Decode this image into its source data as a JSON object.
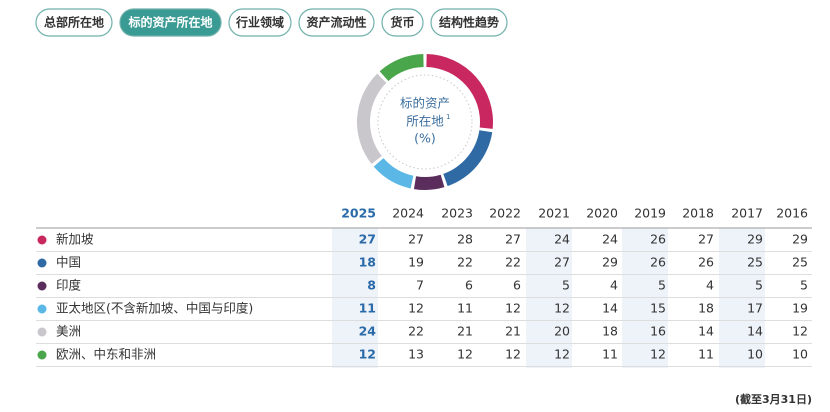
{
  "tabs": [
    "总部所在地",
    "标的资产所在地",
    "行业领域",
    "资产流动性",
    "货币",
    "结构性趋势"
  ],
  "active_tab": 1,
  "donut": {
    "title_lines": [
      "标的资产",
      "所在地",
      "(%)"
    ],
    "footnote_mark": "1"
  },
  "table": {
    "years": [
      2025,
      2024,
      2023,
      2022,
      2021,
      2020,
      2019,
      2018,
      2017,
      2016
    ],
    "rows": [
      {
        "name": "新加坡",
        "color": "#c8285f",
        "values": [
          27,
          27,
          28,
          27,
          24,
          24,
          26,
          27,
          29,
          29
        ]
      },
      {
        "name": "中国",
        "color": "#2f6aa5",
        "values": [
          18,
          19,
          22,
          22,
          27,
          29,
          26,
          26,
          25,
          25
        ]
      },
      {
        "name": "印度",
        "color": "#5a2d5c",
        "values": [
          8,
          7,
          6,
          6,
          5,
          4,
          5,
          4,
          5,
          5
        ]
      },
      {
        "name": "亚太地区(不含新加坡、中国与印度)",
        "color": "#5bb8e6",
        "values": [
          11,
          12,
          11,
          12,
          12,
          14,
          15,
          18,
          17,
          19
        ]
      },
      {
        "name": "美洲",
        "color": "#c9c6cc",
        "values": [
          24,
          22,
          21,
          21,
          20,
          18,
          16,
          14,
          14,
          12
        ]
      },
      {
        "name": "欧洲、中东和非洲",
        "color": "#4aa64a",
        "values": [
          12,
          13,
          12,
          12,
          12,
          11,
          12,
          11,
          10,
          10
        ]
      }
    ]
  },
  "footer": "(截至3月31日)"
}
